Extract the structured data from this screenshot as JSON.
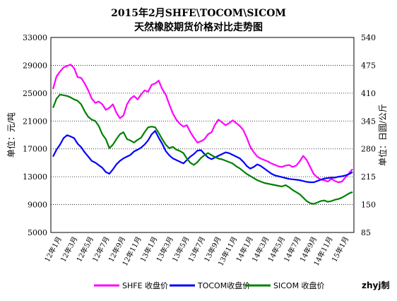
{
  "chart_data": {
    "type": "line",
    "title": "2015年2月SHFE\\TOCOM\\SICOM",
    "subtitle": "天然橡胶期货价格对比走势图",
    "ylabel_left": "单位：元/吨",
    "ylabel_right": "单位：日圆/公斤",
    "ylim_left": [
      5000,
      33000
    ],
    "yticks_left": [
      "5000",
      "9000",
      "13000",
      "17000",
      "21000",
      "25000",
      "29000",
      "33000"
    ],
    "ylim_right": [
      85,
      540
    ],
    "yticks_right": [
      "85",
      "150",
      "215",
      "280",
      "345",
      "410",
      "475",
      "540"
    ],
    "grid": true,
    "legend_position": "bottom",
    "xticks": [
      "12年1月",
      "12年3月",
      "12年5月",
      "12年7月",
      "12年9月",
      "12年11月",
      "13年1月",
      "13年3月",
      "13年5月",
      "13年7月",
      "13年9月",
      "13年11月",
      "14年1月",
      "14年3月",
      "14年5月",
      "14年7月",
      "14年9月",
      "14年11月",
      "15年1月"
    ],
    "series": [
      {
        "name": "SHFE 收盘价",
        "axis": "left",
        "color": "#ff00ff",
        "values": [
          25600,
          27400,
          28100,
          28700,
          28900,
          29100,
          28600,
          27300,
          27200,
          26400,
          25400,
          24200,
          23600,
          23800,
          23400,
          22600,
          22900,
          23400,
          22200,
          21400,
          21800,
          23400,
          24200,
          24600,
          24100,
          24800,
          25400,
          25200,
          26200,
          26400,
          26800,
          25600,
          24800,
          23400,
          22100,
          21200,
          20600,
          20200,
          20400,
          19400,
          18600,
          17900,
          18100,
          18400,
          19100,
          19400,
          20500,
          21200,
          20800,
          20400,
          20700,
          21100,
          20700,
          20300,
          19700,
          18600,
          17300,
          16500,
          15900,
          15600,
          15400,
          15200,
          14900,
          14700,
          14500,
          14400,
          14600,
          14700,
          14400,
          14600,
          15200,
          16000,
          15400,
          14400,
          13400,
          12900,
          12600,
          12500,
          12300,
          12700,
          12400,
          12200,
          12300,
          12900,
          13500,
          14100
        ]
      },
      {
        "name": "TOCOM收盘价",
        "axis": "right",
        "color": "#0000ff",
        "values": [
          262,
          278,
          290,
          305,
          312,
          309,
          305,
          292,
          284,
          272,
          262,
          252,
          248,
          242,
          236,
          226,
          222,
          232,
          244,
          252,
          258,
          262,
          266,
          274,
          278,
          283,
          290,
          300,
          314,
          322,
          306,
          292,
          275,
          265,
          258,
          254,
          250,
          246,
          254,
          262,
          268,
          276,
          277,
          268,
          260,
          256,
          260,
          264,
          268,
          272,
          270,
          266,
          262,
          258,
          250,
          240,
          234,
          238,
          244,
          240,
          234,
          228,
          222,
          218,
          216,
          214,
          212,
          210,
          209,
          208,
          207,
          205,
          203,
          202,
          202,
          205,
          208,
          211,
          212,
          213,
          213,
          215,
          216,
          218,
          221,
          226
        ]
      },
      {
        "name": "SICOM 收盘价",
        "axis": "left",
        "color": "#008000",
        "values": [
          22900,
          24200,
          24800,
          24700,
          24600,
          24400,
          24100,
          23900,
          23400,
          22400,
          21600,
          21200,
          21000,
          20300,
          19100,
          18400,
          17100,
          17600,
          18400,
          19100,
          19400,
          18400,
          18200,
          17900,
          18300,
          18600,
          19400,
          20100,
          20200,
          20100,
          19300,
          18400,
          17600,
          17100,
          17300,
          16900,
          16700,
          16400,
          15600,
          15000,
          14700,
          15100,
          15700,
          16100,
          16400,
          16100,
          15800,
          15600,
          15500,
          15300,
          15100,
          14900,
          14500,
          14200,
          13800,
          13400,
          13100,
          12800,
          12500,
          12300,
          12100,
          12000,
          11900,
          11800,
          11700,
          11600,
          11800,
          11500,
          11100,
          10800,
          10500,
          10000,
          9500,
          9200,
          9100,
          9300,
          9500,
          9600,
          9400,
          9500,
          9700,
          9800,
          10000,
          10300,
          10600,
          10800
        ]
      }
    ]
  },
  "credit": "zhyj制"
}
